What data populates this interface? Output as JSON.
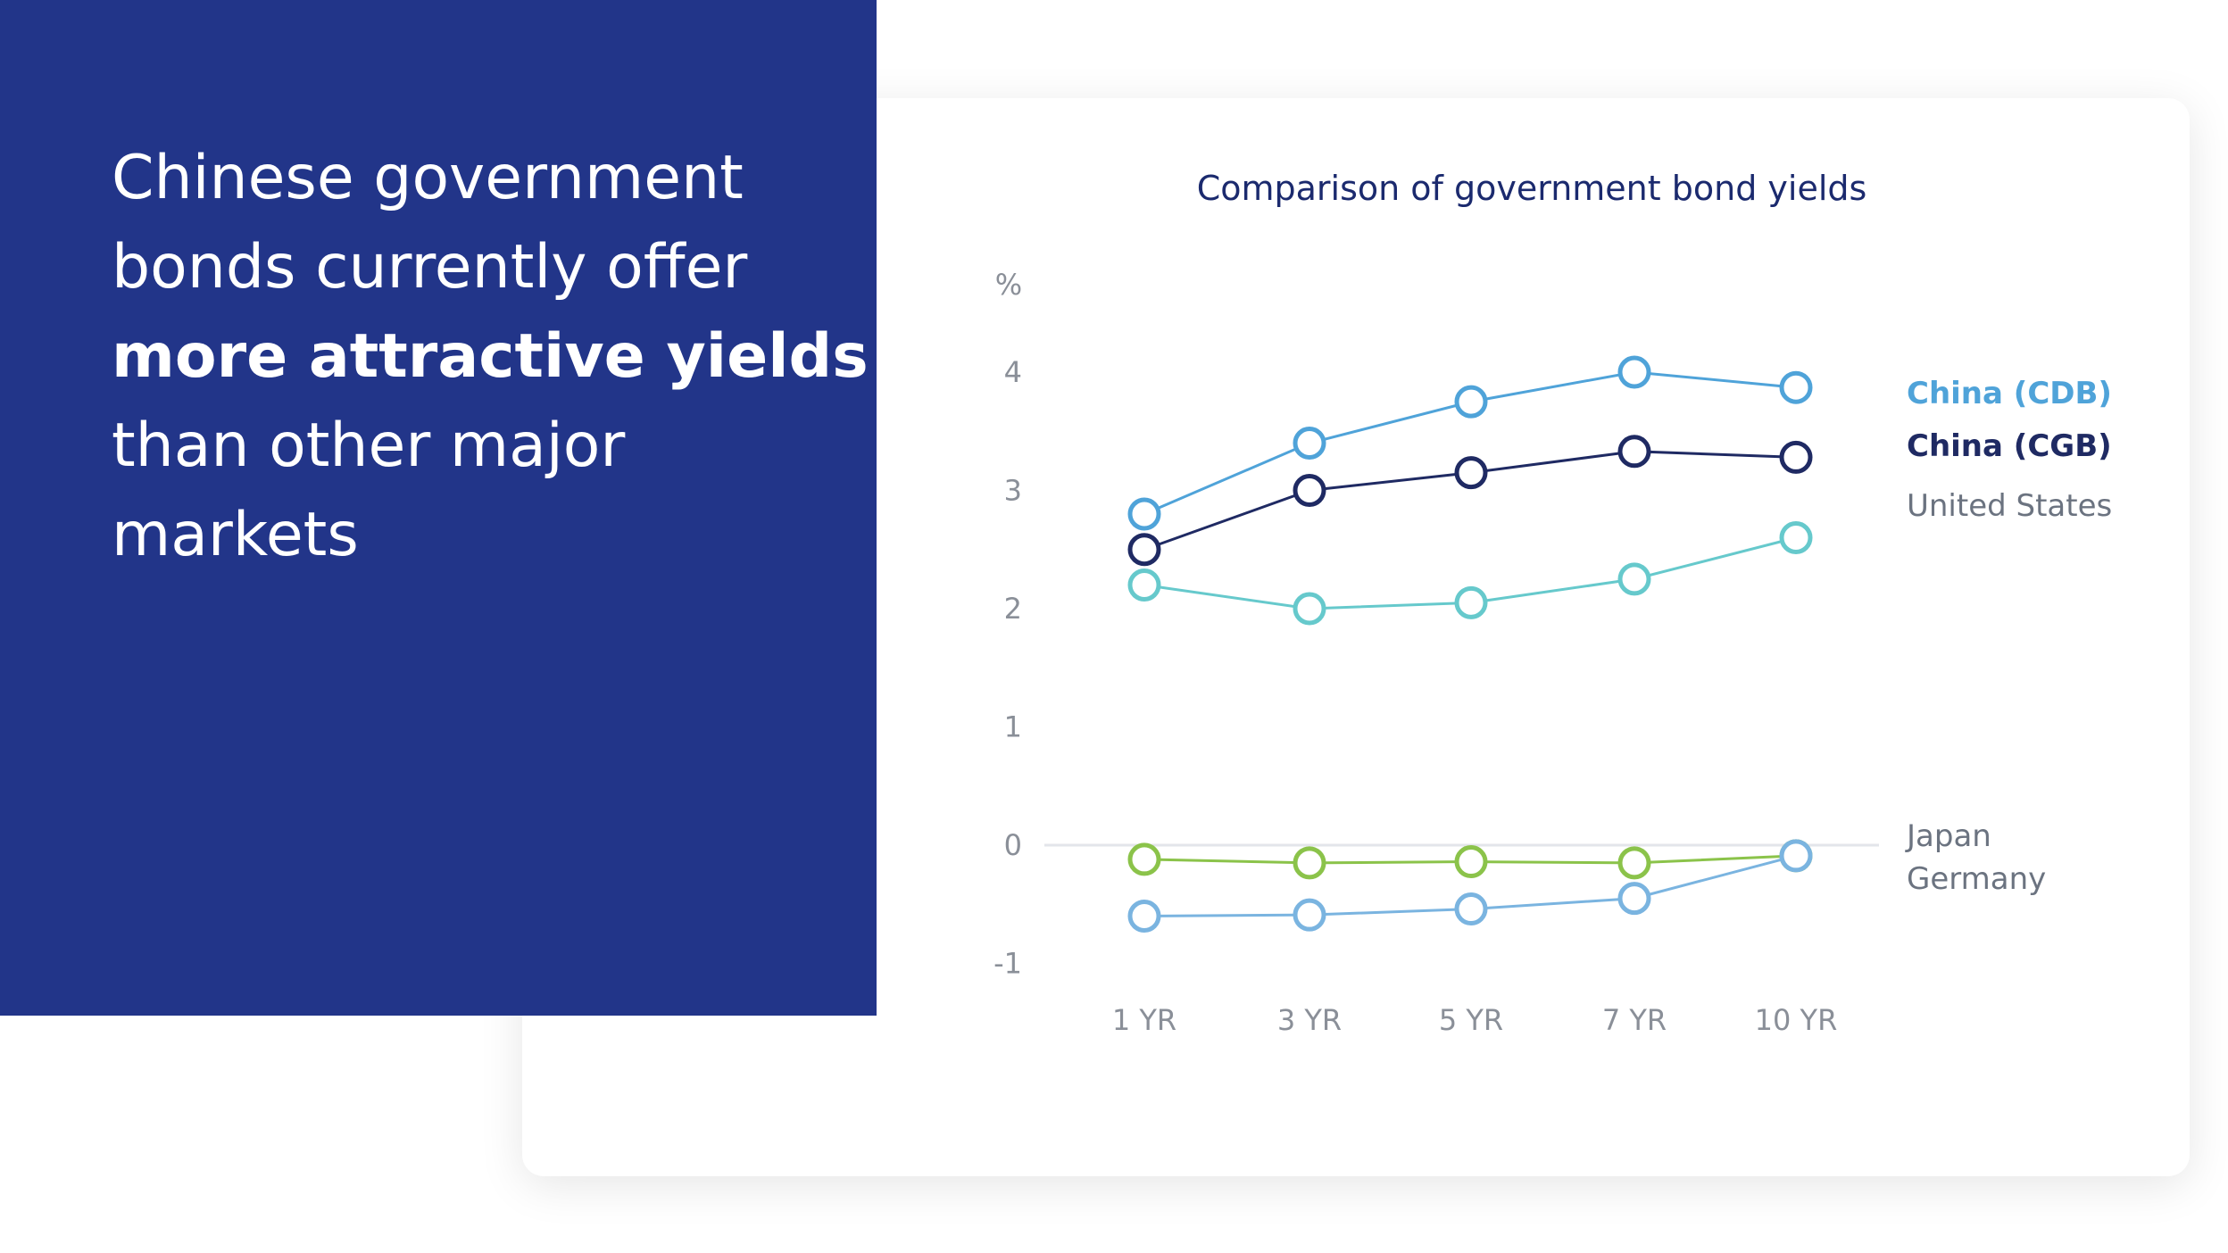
{
  "headline": {
    "line1": "Chinese government",
    "line2": "bonds currently offer",
    "line3": "more attractive yields",
    "line4": "than other major",
    "line5": "markets"
  },
  "colors": {
    "panel": "#223589",
    "china_cdb": "#4fa3d9",
    "china_cgb": "#1f2a63",
    "united_states": "#66c9cc",
    "japan": "#8bc34a",
    "germany": "#7ab4e0"
  },
  "chart_data": {
    "type": "line",
    "title": "Comparison of government bond yields",
    "ylabel": "%",
    "ylim": [
      -1,
      4
    ],
    "yticks": [
      4,
      3,
      2,
      1,
      0,
      -1
    ],
    "ytick_labels": [
      "4",
      "3",
      "2",
      "1",
      "0",
      "-1"
    ],
    "categories": [
      "1 YR",
      "3 YR",
      "5 YR",
      "7 YR",
      "10 YR"
    ],
    "grid": "zero-line only",
    "legend": "right, labels at line ends",
    "series": [
      {
        "name": "China (CDB)",
        "values": [
          2.8,
          3.4,
          3.75,
          4.0,
          3.87
        ],
        "color": "#4fa3d9",
        "label_color": "#4fa3d9",
        "bold": true
      },
      {
        "name": "China (CGB)",
        "values": [
          2.5,
          3.0,
          3.15,
          3.33,
          3.28
        ],
        "color": "#1f2a63",
        "label_color": "#1f2a63",
        "bold": true
      },
      {
        "name": "United States",
        "values": [
          2.2,
          2.0,
          2.05,
          2.25,
          2.6
        ],
        "color": "#66c9cc",
        "label_color": "#6b7380",
        "bold": false
      },
      {
        "name": "Japan",
        "values": [
          -0.12,
          -0.15,
          -0.14,
          -0.15,
          -0.09
        ],
        "color": "#8bc34a",
        "label_color": "#6b7380",
        "bold": false
      },
      {
        "name": "Germany",
        "values": [
          -0.6,
          -0.59,
          -0.54,
          -0.45,
          -0.09
        ],
        "color": "#7ab4e0",
        "label_color": "#6b7380",
        "bold": false
      }
    ]
  }
}
